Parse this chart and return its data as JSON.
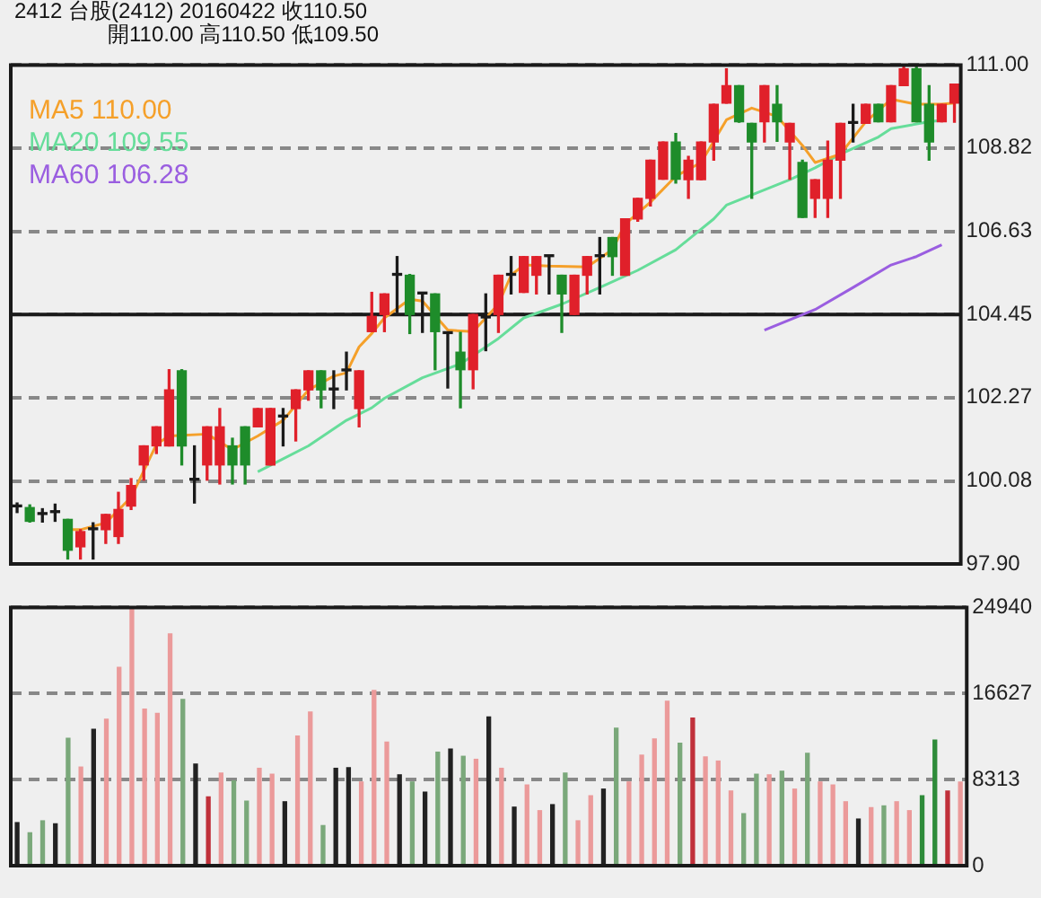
{
  "chart_data": [
    {
      "type": "candlestick",
      "title": "2412 台股(2412) 20160422 收110.50",
      "subtitle": "開110.00 高110.50 低109.50",
      "categories": [
        null,
        null,
        null,
        null,
        null,
        null,
        null,
        null,
        null,
        null,
        null,
        null,
        null,
        null,
        null,
        null,
        null,
        null,
        null,
        null,
        null,
        null,
        null,
        null,
        null,
        null,
        null,
        null,
        null,
        null,
        null,
        null,
        null,
        null,
        null,
        null,
        null,
        null,
        null,
        null,
        null,
        null,
        null,
        null,
        null,
        null,
        null,
        null,
        null,
        null,
        null,
        null,
        null,
        null,
        null,
        null,
        null,
        null,
        null,
        null,
        null,
        null,
        null,
        null,
        null,
        null,
        null,
        null,
        null,
        null,
        null,
        null,
        null,
        null,
        null
      ],
      "ohlc": [
        [
          99.4,
          99.5,
          99.25,
          99.4
        ],
        [
          99.38,
          99.45,
          99.0,
          99.02
        ],
        [
          99.2,
          99.35,
          99.0,
          99.2
        ],
        [
          99.25,
          99.47,
          99.02,
          99.25
        ],
        [
          99.07,
          99.07,
          98.03,
          98.26
        ],
        [
          98.35,
          98.8,
          98.03,
          98.75
        ],
        [
          98.8,
          98.98,
          98.03,
          98.8
        ],
        [
          98.8,
          99.2,
          98.44,
          99.2
        ],
        [
          98.62,
          99.78,
          98.44,
          99.33
        ],
        [
          99.42,
          100.14,
          99.33,
          99.96
        ],
        [
          100.5,
          101.0,
          100.1,
          101.0
        ],
        [
          101.0,
          101.5,
          100.8,
          101.5
        ],
        [
          101.0,
          103.0,
          101.0,
          102.47
        ],
        [
          102.97,
          103.0,
          100.5,
          101.0
        ],
        [
          100.1,
          101.0,
          99.5,
          100.1
        ],
        [
          100.5,
          101.5,
          100.1,
          101.5
        ],
        [
          100.5,
          101.98,
          100.0,
          101.5
        ],
        [
          101.0,
          101.2,
          100.0,
          100.5
        ],
        [
          101.5,
          101.5,
          100.0,
          100.5
        ],
        [
          101.5,
          101.98,
          101.5,
          101.98
        ],
        [
          100.5,
          101.98,
          100.5,
          101.98
        ],
        [
          101.76,
          101.98,
          101.0,
          101.76
        ],
        [
          101.98,
          102.47,
          101.13,
          102.47
        ],
        [
          102.47,
          102.97,
          102.2,
          102.97
        ],
        [
          102.97,
          102.97,
          102.0,
          102.47
        ],
        [
          102.47,
          102.97,
          101.98,
          102.47
        ],
        [
          102.97,
          103.46,
          102.47,
          102.97
        ],
        [
          101.98,
          102.97,
          101.5,
          102.97
        ],
        [
          104.0,
          105.03,
          104.0,
          104.4
        ],
        [
          104.45,
          104.99,
          104.0,
          104.99
        ],
        [
          105.48,
          105.97,
          104.5,
          105.48
        ],
        [
          105.48,
          105.5,
          103.95,
          104.45
        ],
        [
          104.99,
          104.99,
          103.98,
          104.99
        ],
        [
          104.99,
          104.99,
          103.0,
          104.0
        ],
        [
          103.95,
          103.95,
          102.52,
          103.95
        ],
        [
          103.46,
          103.98,
          102.0,
          103.0
        ],
        [
          103.0,
          104.45,
          102.5,
          104.45
        ],
        [
          104.36,
          104.99,
          103.5,
          104.36
        ],
        [
          104.45,
          105.48,
          103.98,
          105.48
        ],
        [
          105.48,
          105.97,
          104.99,
          105.48
        ],
        [
          105.03,
          105.97,
          105.03,
          105.97
        ],
        [
          105.48,
          105.97,
          104.99,
          105.97
        ],
        [
          105.97,
          105.97,
          104.99,
          105.97
        ],
        [
          105.48,
          105.48,
          103.98,
          104.99
        ],
        [
          104.45,
          105.48,
          104.45,
          105.48
        ],
        [
          105.48,
          105.97,
          104.99,
          105.97
        ],
        [
          105.97,
          106.47,
          104.99,
          105.97
        ],
        [
          106.47,
          106.47,
          105.48,
          105.97
        ],
        [
          105.48,
          106.96,
          105.48,
          106.96
        ],
        [
          106.96,
          107.5,
          106.9,
          107.5
        ],
        [
          107.5,
          108.5,
          107.3,
          108.5
        ],
        [
          108.0,
          108.98,
          108.0,
          108.98
        ],
        [
          108.98,
          109.2,
          107.9,
          108.0
        ],
        [
          107.99,
          108.6,
          107.5,
          108.5
        ],
        [
          107.99,
          108.98,
          107.99,
          108.98
        ],
        [
          108.98,
          109.97,
          108.5,
          109.97
        ],
        [
          110.0,
          110.9,
          110.0,
          110.46
        ],
        [
          110.46,
          110.46,
          109.5,
          109.51
        ],
        [
          109.47,
          109.47,
          107.5,
          108.98
        ],
        [
          109.51,
          110.46,
          108.98,
          110.46
        ],
        [
          109.97,
          110.46,
          109.0,
          109.51
        ],
        [
          108.98,
          109.47,
          108.0,
          109.47
        ],
        [
          108.44,
          108.5,
          107.0,
          107.0
        ],
        [
          107.5,
          107.99,
          107.0,
          107.99
        ],
        [
          107.5,
          109.0,
          107.0,
          108.5
        ],
        [
          108.5,
          109.47,
          107.5,
          109.47
        ],
        [
          109.47,
          109.97,
          108.98,
          109.47
        ],
        [
          109.47,
          109.97,
          109.47,
          109.97
        ],
        [
          109.97,
          109.97,
          109.51,
          109.51
        ],
        [
          109.51,
          110.46,
          109.51,
          110.46
        ],
        [
          110.46,
          111.0,
          110.46,
          110.9
        ],
        [
          110.9,
          111.0,
          109.51,
          109.51
        ],
        [
          109.97,
          110.46,
          108.5,
          108.98
        ],
        [
          109.51,
          109.97,
          109.51,
          109.97
        ],
        [
          110.0,
          110.5,
          109.5,
          110.5
        ]
      ],
      "colors": [
        "#1a1a1a",
        "#1e8c2a",
        "#1a1a1a",
        "#1a1a1a",
        "#1e8c2a",
        "#e0202a",
        "#1a1a1a",
        "#e0202a",
        "#e0202a",
        "#e0202a",
        "#e0202a",
        "#e0202a",
        "#e0202a",
        "#1e8c2a",
        "#1a1a1a",
        "#e0202a",
        "#e0202a",
        "#1e8c2a",
        "#1e8c2a",
        "#e0202a",
        "#e0202a",
        "#1a1a1a",
        "#e0202a",
        "#e0202a",
        "#1e8c2a",
        "#1a1a1a",
        "#1a1a1a",
        "#e0202a",
        "#e0202a",
        "#e0202a",
        "#1a1a1a",
        "#1e8c2a",
        "#1a1a1a",
        "#1e8c2a",
        "#1a1a1a",
        "#1e8c2a",
        "#e0202a",
        "#1a1a1a",
        "#e0202a",
        "#1a1a1a",
        "#e0202a",
        "#e0202a",
        "#1a1a1a",
        "#1e8c2a",
        "#e0202a",
        "#e0202a",
        "#1a1a1a",
        "#1e8c2a",
        "#e0202a",
        "#e0202a",
        "#e0202a",
        "#e0202a",
        "#1e8c2a",
        "#e0202a",
        "#e0202a",
        "#e0202a",
        "#e0202a",
        "#1e8c2a",
        "#1e8c2a",
        "#e0202a",
        "#1e8c2a",
        "#e0202a",
        "#1e8c2a",
        "#e0202a",
        "#e0202a",
        "#e0202a",
        "#1a1a1a",
        "#e0202a",
        "#1e8c2a",
        "#e0202a",
        "#e0202a",
        "#1e8c2a",
        "#1e8c2a",
        "#e0202a",
        "#e0202a"
      ],
      "series": [
        {
          "name": "MA5 110.00",
          "type": "line",
          "color": "#f5a02a",
          "values": [
            null,
            null,
            null,
            null,
            98.8,
            98.8,
            null,
            98.98,
            null,
            99.65,
            null,
            101.04,
            101.26,
            null,
            null,
            101.31,
            null,
            100.9,
            null,
            101.26,
            null,
            101.67,
            null,
            102.47,
            null,
            102.83,
            102.92,
            103.6,
            103.95,
            104.36,
            null,
            104.85,
            104.8,
            null,
            104.04,
            null,
            104.0,
            null,
            104.72,
            105.48,
            105.75,
            null,
            105.72,
            null,
            null,
            105.7,
            null,
            106.15,
            106.82,
            null,
            107.4,
            null,
            108.08,
            null,
            108.44,
            null,
            109.56,
            null,
            109.87,
            null,
            109.65,
            null,
            108.89,
            108.44,
            null,
            108.66,
            null,
            109.51,
            null,
            110.1,
            null,
            109.97,
            null,
            109.97,
            110.0
          ]
        },
        {
          "name": "MA20 109.55",
          "type": "line",
          "color": "#66dd9a",
          "values": [
            null,
            null,
            null,
            null,
            null,
            null,
            null,
            null,
            null,
            null,
            null,
            null,
            null,
            null,
            null,
            null,
            null,
            null,
            null,
            100.32,
            null,
            null,
            null,
            101.0,
            null,
            null,
            101.67,
            null,
            102.0,
            102.25,
            null,
            null,
            102.79,
            null,
            null,
            103.15,
            null,
            null,
            103.82,
            null,
            104.36,
            null,
            null,
            104.72,
            null,
            null,
            105.16,
            null,
            null,
            105.61,
            null,
            null,
            106.15,
            null,
            null,
            106.96,
            107.32,
            null,
            null,
            null,
            null,
            107.99,
            null,
            108.3,
            null,
            108.66,
            null,
            null,
            109.11,
            109.33,
            null,
            null,
            109.51,
            109.55,
            null
          ]
        },
        {
          "name": "MA60 106.28",
          "type": "line",
          "color": "#9a5ee0",
          "values": [
            null,
            null,
            null,
            null,
            null,
            null,
            null,
            null,
            null,
            null,
            null,
            null,
            null,
            null,
            null,
            null,
            null,
            null,
            null,
            null,
            null,
            null,
            null,
            null,
            null,
            null,
            null,
            null,
            null,
            null,
            null,
            null,
            null,
            null,
            null,
            null,
            null,
            null,
            null,
            null,
            null,
            null,
            null,
            null,
            null,
            null,
            null,
            null,
            null,
            null,
            null,
            null,
            null,
            null,
            null,
            null,
            null,
            null,
            null,
            104.04,
            null,
            null,
            null,
            104.58,
            null,
            null,
            105.16,
            null,
            null,
            105.75,
            null,
            105.97,
            null,
            106.28,
            null
          ]
        }
      ],
      "ylim": [
        97.9,
        111.0
      ],
      "yticks": [
        {
          "value": 97.9,
          "label": "97.90"
        },
        100.08,
        102.27,
        104.45,
        106.63,
        108.82,
        {
          "value": 111.0,
          "label": "111.00"
        }
      ],
      "ref_lines": [
        {
          "axis": "y",
          "value": 104.45,
          "color": "#1a1a1a",
          "line_style": "solid"
        }
      ],
      "grid": "y",
      "legend": "top left",
      "marker": "none",
      "tick_labels": "y"
    },
    {
      "type": "bar",
      "categories": [
        null,
        null,
        null,
        null,
        null,
        null,
        null,
        null,
        null,
        null,
        null,
        null,
        null,
        null,
        null,
        null,
        null,
        null,
        null,
        null,
        null,
        null,
        null,
        null,
        null,
        null,
        null,
        null,
        null,
        null,
        null,
        null,
        null,
        null,
        null,
        null,
        null,
        null,
        null,
        null,
        null,
        null,
        null,
        null,
        null,
        null,
        null,
        null,
        null,
        null,
        null,
        null,
        null,
        null,
        null,
        null,
        null,
        null,
        null,
        null,
        null,
        null,
        null,
        null,
        null,
        null,
        null,
        null,
        null,
        null,
        null,
        null,
        null,
        null,
        null
      ],
      "values": [
        4155,
        3175,
        4330,
        4040,
        12290,
        9520,
        13160,
        14140,
        19160,
        24810,
        15120,
        14710,
        22390,
        16040,
        9810,
        6640,
        8940,
        8190,
        6230,
        9400,
        8830,
        6170,
        12520,
        14830,
        3870,
        9400,
        9460,
        8080,
        16910,
        11940,
        8770,
        8080,
        7100,
        10960,
        11250,
        10560,
        10270,
        14370,
        9400,
        5650,
        7790,
        5310,
        5890,
        8940,
        4330,
        6750,
        7390,
        13270,
        8080,
        10670,
        12230,
        15870,
        11830,
        14250,
        10500,
        10100,
        7210,
        5020,
        8830,
        8770,
        9120,
        7390,
        10850,
        8080,
        7790,
        6170,
        4500,
        5600,
        5770,
        6170,
        5310,
        6750,
        12120,
        7210,
        8080
      ],
      "colors": [
        "#222222",
        "#7aa87a",
        "#7aa87a",
        "#222222",
        "#7aa87a",
        "#eb9a9a",
        "#222222",
        "#eb9a9a",
        "#eb9a9a",
        "#eb9a9a",
        "#eb9a9a",
        "#eb9a9a",
        "#eb9a9a",
        "#7aa87a",
        "#222222",
        "#c0303a",
        "#eb9a9a",
        "#7aa87a",
        "#7aa87a",
        "#eb9a9a",
        "#eb9a9a",
        "#222222",
        "#eb9a9a",
        "#eb9a9a",
        "#7aa87a",
        "#222222",
        "#222222",
        "#eb9a9a",
        "#eb9a9a",
        "#eb9a9a",
        "#222222",
        "#7aa87a",
        "#222222",
        "#7aa87a",
        "#222222",
        "#7aa87a",
        "#eb9a9a",
        "#222222",
        "#eb9a9a",
        "#222222",
        "#eb9a9a",
        "#eb9a9a",
        "#222222",
        "#7aa87a",
        "#eb9a9a",
        "#eb9a9a",
        "#222222",
        "#7aa87a",
        "#eb9a9a",
        "#eb9a9a",
        "#eb9a9a",
        "#eb9a9a",
        "#7aa87a",
        "#c0303a",
        "#eb9a9a",
        "#eb9a9a",
        "#eb9a9a",
        "#7aa87a",
        "#7aa87a",
        "#eb9a9a",
        "#7aa87a",
        "#eb9a9a",
        "#7aa87a",
        "#eb9a9a",
        "#eb9a9a",
        "#eb9a9a",
        "#222222",
        "#eb9a9a",
        "#7aa87a",
        "#eb9a9a",
        "#eb9a9a",
        "#2e8b3a",
        "#2e8b3a",
        "#c0303a",
        "#eb9a9a"
      ],
      "ylim": [
        0,
        24940
      ],
      "yticks": [
        0,
        8313,
        16627,
        24940
      ],
      "grid": "y",
      "tick_labels": "y"
    }
  ]
}
